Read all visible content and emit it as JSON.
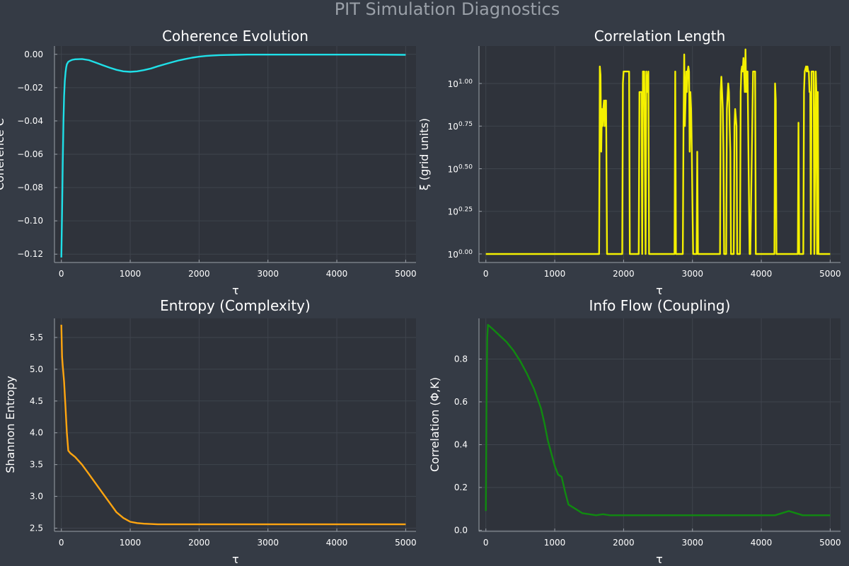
{
  "figure": {
    "title": "PIT Simulation Diagnostics",
    "background": "#353b45",
    "plot_background": "#2f333b"
  },
  "chart_data": [
    {
      "type": "line",
      "title": "Coherence Evolution",
      "xlabel": "τ",
      "ylabel": "Coherence C",
      "xlim": [
        -100,
        5150
      ],
      "ylim": [
        -0.125,
        0.005
      ],
      "xticks": [
        0,
        1000,
        2000,
        3000,
        4000,
        5000
      ],
      "xtick_labels": [
        "0",
        "1000",
        "2000",
        "3000",
        "4000",
        "5000"
      ],
      "yticks": [
        0,
        -0.02,
        -0.04,
        -0.06,
        -0.08,
        -0.1,
        -0.12
      ],
      "ytick_labels": [
        "0.00",
        "−0.02",
        "−0.04",
        "−0.06",
        "−0.08",
        "−0.10",
        "−0.12"
      ],
      "grid": true,
      "series": [
        {
          "color": "#1fe0e8",
          "x": [
            0,
            10,
            20,
            30,
            40,
            50,
            60,
            70,
            80,
            100,
            130,
            160,
            200,
            300,
            400,
            500,
            600,
            700,
            800,
            900,
            1000,
            1100,
            1200,
            1300,
            1400,
            1500,
            1600,
            1700,
            1800,
            1900,
            2000,
            2100,
            2200,
            2300,
            2400,
            2500,
            2700,
            3000,
            3500,
            4000,
            4500,
            5000
          ],
          "y": [
            -0.122,
            -0.095,
            -0.065,
            -0.04,
            -0.025,
            -0.016,
            -0.011,
            -0.008,
            -0.006,
            -0.0045,
            -0.0038,
            -0.0033,
            -0.003,
            -0.0028,
            -0.0035,
            -0.005,
            -0.0065,
            -0.008,
            -0.0093,
            -0.0102,
            -0.0105,
            -0.0102,
            -0.0095,
            -0.0085,
            -0.0072,
            -0.006,
            -0.0048,
            -0.0037,
            -0.0028,
            -0.002,
            -0.0014,
            -0.001,
            -0.0007,
            -0.0005,
            -0.0004,
            -0.0003,
            -0.0002,
            -0.0002,
            -0.0002,
            -0.0002,
            -0.0002,
            -0.0003
          ]
        }
      ]
    },
    {
      "type": "line",
      "title": "Correlation Length",
      "xlabel": "τ",
      "ylabel": "ξ (grid units)",
      "yscale": "log10",
      "xlim": [
        -100,
        5150
      ],
      "ylim": [
        -0.05,
        1.22
      ],
      "xticks": [
        0,
        1000,
        2000,
        3000,
        4000,
        5000
      ],
      "xtick_labels": [
        "0",
        "1000",
        "2000",
        "3000",
        "4000",
        "5000"
      ],
      "yticks": [
        0,
        0.25,
        0.5,
        0.75,
        1.0
      ],
      "ytick_base": "10",
      "ytick_exponents": [
        "0.00",
        "0.25",
        "0.50",
        "0.75",
        "1.00"
      ],
      "grid": true,
      "series": [
        {
          "color": "#f4f000",
          "x": [
            0,
            1645,
            1655,
            1665,
            1675,
            1685,
            1695,
            1705,
            1715,
            1725,
            1735,
            1745,
            1750,
            1760,
            1980,
            1990,
            2000,
            2020,
            2040,
            2060,
            2080,
            2090,
            2220,
            2230,
            2260,
            2270,
            2280,
            2300,
            2320,
            2330,
            2340,
            2360,
            2370,
            2740,
            2750,
            2760,
            2860,
            2870,
            2880,
            2890,
            2910,
            2920,
            2930,
            2940,
            2950,
            2960,
            2970,
            2980,
            2990,
            3000,
            3010,
            3060,
            3070,
            3080,
            3400,
            3410,
            3420,
            3430,
            3440,
            3450,
            3460,
            3490,
            3500,
            3520,
            3530,
            3540,
            3550,
            3560,
            3600,
            3610,
            3620,
            3640,
            3650,
            3690,
            3700,
            3710,
            3720,
            3730,
            3740,
            3750,
            3760,
            3770,
            3780,
            3790,
            3800,
            3830,
            3840,
            3880,
            3890,
            3900,
            3910,
            3920,
            4190,
            4200,
            4210,
            4220,
            4530,
            4540,
            4550,
            4610,
            4620,
            4630,
            4650,
            4660,
            4670,
            4680,
            4690,
            4700,
            4710,
            4720,
            4730,
            4740,
            4760,
            4770,
            4790,
            4800,
            4810,
            4820,
            4830,
            5000
          ],
          "y": [
            0,
            0,
            1.1,
            1.05,
            0.6,
            0.85,
            0.75,
            0.85,
            0.9,
            0.75,
            0.9,
            0.9,
            0.6,
            0,
            0,
            1.0,
            1.07,
            1.07,
            1.07,
            1.07,
            1.07,
            0,
            0,
            0.95,
            0.95,
            0,
            1.07,
            1.07,
            0,
            1.07,
            0.95,
            1.07,
            0,
            0,
            1.07,
            0,
            0,
            0.75,
            1.17,
            0.75,
            1.07,
            0.95,
            1.07,
            1.1,
            1.07,
            0.6,
            0.95,
            0.85,
            0.6,
            0.3,
            0,
            0,
            0.6,
            0,
            0,
            0.95,
            1.04,
            0.95,
            0.85,
            0.6,
            0,
            0,
            0.85,
            1.0,
            0.95,
            0.75,
            0.6,
            0,
            0,
            0.75,
            0.85,
            0.75,
            0,
            0,
            0.95,
            1.07,
            1.1,
            1.07,
            1.15,
            1.07,
            0.95,
            1.2,
            0.95,
            1.07,
            1.07,
            0,
            0,
            1.07,
            1.07,
            1.07,
            1.07,
            0,
            0,
            1.0,
            0.9,
            0,
            0,
            0.77,
            0,
            0,
            0.95,
            1.07,
            1.1,
            1.07,
            1.1,
            1.07,
            1.07,
            0.95,
            0.95,
            0,
            1.07,
            1.07,
            1.07,
            0,
            1.07,
            0.95,
            0,
            0.95,
            0,
            0
          ]
        }
      ]
    },
    {
      "type": "line",
      "title": "Entropy (Complexity)",
      "xlabel": "τ",
      "ylabel": "Shannon Entropy",
      "xlim": [
        -100,
        5150
      ],
      "ylim": [
        2.45,
        5.8
      ],
      "xticks": [
        0,
        1000,
        2000,
        3000,
        4000,
        5000
      ],
      "xtick_labels": [
        "0",
        "1000",
        "2000",
        "3000",
        "4000",
        "5000"
      ],
      "yticks": [
        2.5,
        3.0,
        3.5,
        4.0,
        4.5,
        5.0,
        5.5
      ],
      "ytick_labels": [
        "2.5",
        "3.0",
        "3.5",
        "4.0",
        "4.5",
        "5.0",
        "5.5"
      ],
      "grid": true,
      "series": [
        {
          "color": "#ffa510",
          "x": [
            0,
            10,
            20,
            40,
            60,
            80,
            100,
            130,
            200,
            300,
            400,
            500,
            600,
            700,
            800,
            900,
            1000,
            1100,
            1200,
            1400,
            1600,
            1800,
            2000,
            2300,
            2600,
            3000,
            3400,
            3800,
            4200,
            4600,
            5000
          ],
          "y": [
            5.7,
            5.2,
            5.05,
            4.8,
            4.4,
            4.0,
            3.72,
            3.68,
            3.62,
            3.5,
            3.35,
            3.2,
            3.05,
            2.9,
            2.75,
            2.66,
            2.6,
            2.58,
            2.57,
            2.56,
            2.56,
            2.56,
            2.56,
            2.56,
            2.56,
            2.56,
            2.56,
            2.56,
            2.56,
            2.56,
            2.56
          ]
        }
      ]
    },
    {
      "type": "line",
      "title": "Info Flow (Coupling)",
      "xlabel": "τ",
      "ylabel": "Correlation (Φ,K)",
      "xlim": [
        -100,
        5150
      ],
      "ylim": [
        -0.005,
        0.99
      ],
      "xticks": [
        0,
        1000,
        2000,
        3000,
        4000,
        5000
      ],
      "xtick_labels": [
        "0",
        "1000",
        "2000",
        "3000",
        "4000",
        "5000"
      ],
      "yticks": [
        0,
        0.2,
        0.4,
        0.6,
        0.8
      ],
      "ytick_labels": [
        "0.0",
        "0.2",
        "0.4",
        "0.6",
        "0.8"
      ],
      "grid": true,
      "series": [
        {
          "color": "#108a10",
          "x": [
            0,
            10,
            20,
            30,
            100,
            200,
            300,
            400,
            500,
            600,
            700,
            800,
            850,
            900,
            950,
            1000,
            1050,
            1100,
            1150,
            1200,
            1300,
            1400,
            1500,
            1600,
            1700,
            1800,
            2000,
            2200,
            2400,
            2600,
            2800,
            3000,
            3200,
            3400,
            3600,
            3800,
            4000,
            4200,
            4400,
            4600,
            4800,
            5000
          ],
          "y": [
            0.09,
            0.6,
            0.9,
            0.96,
            0.94,
            0.91,
            0.88,
            0.84,
            0.79,
            0.73,
            0.66,
            0.57,
            0.5,
            0.42,
            0.36,
            0.3,
            0.26,
            0.25,
            0.18,
            0.12,
            0.1,
            0.08,
            0.075,
            0.07,
            0.075,
            0.07,
            0.07,
            0.07,
            0.07,
            0.07,
            0.07,
            0.07,
            0.07,
            0.07,
            0.07,
            0.07,
            0.07,
            0.07,
            0.09,
            0.07,
            0.07,
            0.07
          ]
        }
      ]
    }
  ]
}
